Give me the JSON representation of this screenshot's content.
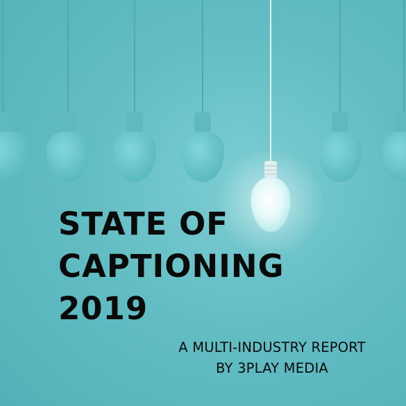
{
  "title_lines": [
    "STATE OF",
    "CAPTIONING",
    "2019"
  ],
  "subtitle_lines": [
    "A MULTI-INDUSTRY REPORT",
    "BY 3PLAY MEDIA"
  ],
  "colors": {
    "background": "#63bec4",
    "bulb_unlit": "#6ccbd1",
    "bulb_lit": "#eefcfc",
    "text": "#0a0a0a"
  },
  "icons": [
    "hanging-lightbulb-icon",
    "lit-lightbulb-icon"
  ]
}
